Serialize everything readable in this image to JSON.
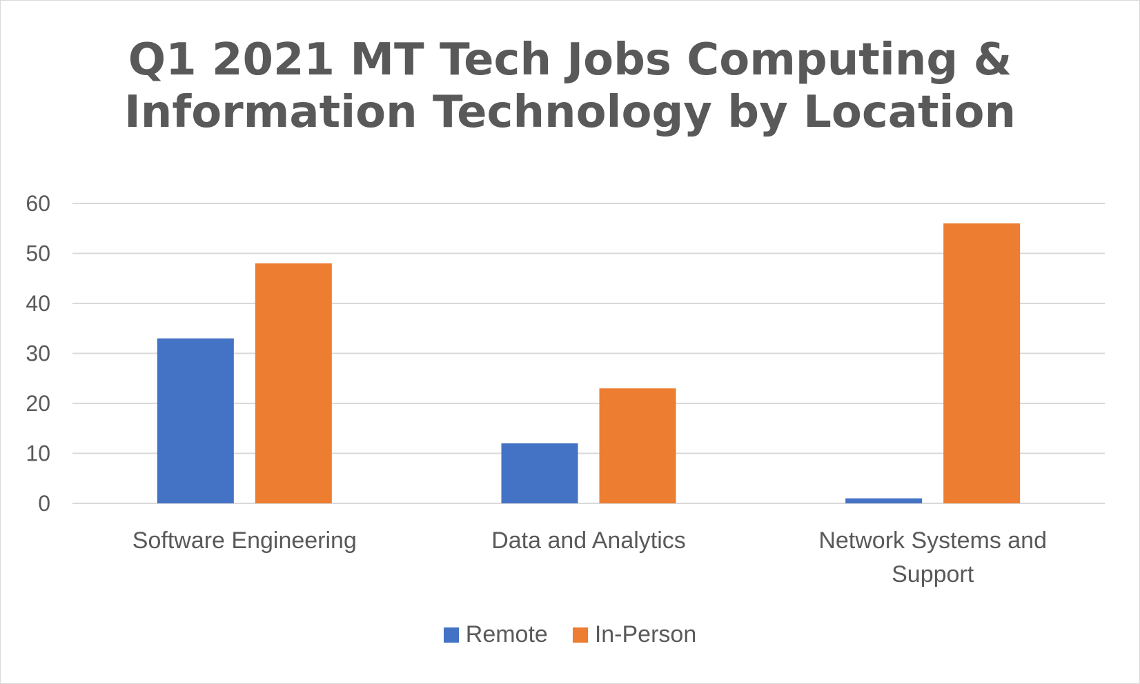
{
  "chart_data": {
    "type": "bar",
    "title": "Q1 2021 MT Tech Jobs Computing & Information Technology by Location",
    "title_lines": [
      "Q1 2021 MT Tech Jobs Computing &",
      "Information Technology by Location"
    ],
    "categories": [
      "Software Engineering",
      "Data and Analytics",
      "Network Systems and Support"
    ],
    "category_lines": [
      [
        "Software Engineering"
      ],
      [
        "Data and Analytics"
      ],
      [
        "Network Systems and",
        "Support"
      ]
    ],
    "series": [
      {
        "name": "Remote",
        "values": [
          33,
          12,
          1
        ],
        "color": "#4472C4"
      },
      {
        "name": "In-Person",
        "values": [
          48,
          23,
          56
        ],
        "color": "#ED7D31"
      }
    ],
    "ylim": [
      0,
      60
    ],
    "yticks": [
      "0",
      "10",
      "20",
      "30",
      "40",
      "50",
      "60"
    ],
    "grid": true,
    "legend_position": "bottom",
    "xlabel": "",
    "ylabel": ""
  }
}
